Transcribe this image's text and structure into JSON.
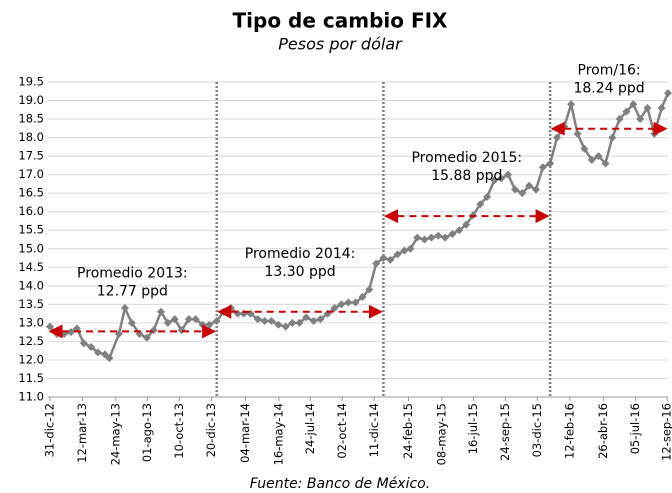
{
  "chart_data": {
    "type": "line",
    "title": "Tipo de cambio FIX",
    "subtitle": "Pesos por dólar",
    "source": "Fuente: Banco de México.",
    "color": "#808080",
    "grid": true,
    "x": [
      "2012-12-31",
      "2013-01-15",
      "2013-01-31",
      "2013-02-15",
      "2013-02-28",
      "2013-03-15",
      "2013-03-31",
      "2013-04-15",
      "2013-04-30",
      "2013-05-10",
      "2013-05-31",
      "2013-06-13",
      "2013-06-28",
      "2013-07-15",
      "2013-07-31",
      "2013-08-15",
      "2013-08-31",
      "2013-09-15",
      "2013-09-30",
      "2013-10-15",
      "2013-10-31",
      "2013-11-15",
      "2013-11-30",
      "2013-12-15",
      "2013-12-31",
      "2014-01-15",
      "2014-01-31",
      "2014-02-15",
      "2014-02-28",
      "2014-03-15",
      "2014-03-31",
      "2014-04-15",
      "2014-04-30",
      "2014-05-15",
      "2014-05-31",
      "2014-06-15",
      "2014-06-30",
      "2014-07-15",
      "2014-07-31",
      "2014-08-15",
      "2014-08-31",
      "2014-09-15",
      "2014-09-30",
      "2014-10-15",
      "2014-10-31",
      "2014-11-15",
      "2014-11-30",
      "2014-12-15",
      "2014-12-31",
      "2015-01-15",
      "2015-01-31",
      "2015-02-15",
      "2015-02-28",
      "2015-03-15",
      "2015-03-31",
      "2015-04-15",
      "2015-04-30",
      "2015-05-15",
      "2015-05-31",
      "2015-06-15",
      "2015-06-30",
      "2015-07-15",
      "2015-07-31",
      "2015-08-15",
      "2015-08-31",
      "2015-09-15",
      "2015-09-30",
      "2015-10-15",
      "2015-10-31",
      "2015-11-15",
      "2015-11-30",
      "2015-12-15",
      "2015-12-31",
      "2016-01-15",
      "2016-01-31",
      "2016-02-15",
      "2016-02-29",
      "2016-03-15",
      "2016-03-31",
      "2016-04-15",
      "2016-04-30",
      "2016-05-15",
      "2016-05-31",
      "2016-06-15",
      "2016-06-30",
      "2016-07-15",
      "2016-07-31",
      "2016-08-15",
      "2016-08-31",
      "2016-09-14"
    ],
    "values": [
      12.9,
      12.7,
      12.7,
      12.75,
      12.85,
      12.45,
      12.35,
      12.2,
      12.15,
      12.05,
      12.7,
      13.4,
      13.0,
      12.7,
      12.6,
      12.8,
      13.3,
      13.0,
      13.1,
      12.8,
      13.1,
      13.1,
      12.95,
      12.95,
      13.05,
      13.3,
      13.4,
      13.25,
      13.25,
      13.25,
      13.1,
      13.05,
      13.05,
      12.95,
      12.9,
      13.0,
      13.0,
      13.15,
      13.05,
      13.1,
      13.25,
      13.4,
      13.5,
      13.55,
      13.55,
      13.7,
      13.9,
      14.6,
      14.75,
      14.7,
      14.85,
      14.95,
      15.0,
      15.3,
      15.25,
      15.3,
      15.35,
      15.3,
      15.4,
      15.5,
      15.65,
      15.9,
      16.2,
      16.4,
      16.85,
      16.9,
      17.0,
      16.6,
      16.5,
      16.7,
      16.6,
      17.2,
      17.3,
      18.0,
      18.3,
      18.9,
      18.1,
      17.7,
      17.4,
      17.5,
      17.3,
      18.0,
      18.5,
      18.7,
      18.9,
      18.5,
      18.8,
      18.1,
      18.8,
      19.2
    ],
    "xlim": [
      "2012-12-31",
      "2016-09-14"
    ],
    "xticks": [
      {
        "value": "2012-12-31",
        "label": "31-dic-12"
      },
      {
        "value": "2013-03-12",
        "label": "12-mar-13"
      },
      {
        "value": "2013-05-24",
        "label": "24-may-13"
      },
      {
        "value": "2013-08-01",
        "label": "01-ago-13"
      },
      {
        "value": "2013-10-10",
        "label": "10-oct-13"
      },
      {
        "value": "2013-12-20",
        "label": "20-dic-13"
      },
      {
        "value": "2014-03-04",
        "label": "04-mar-14"
      },
      {
        "value": "2014-05-16",
        "label": "16-may-14"
      },
      {
        "value": "2014-07-24",
        "label": "24-jul-14"
      },
      {
        "value": "2014-10-02",
        "label": "02-oct-14"
      },
      {
        "value": "2014-12-11",
        "label": "11-dic-14"
      },
      {
        "value": "2015-02-24",
        "label": "24-feb-15"
      },
      {
        "value": "2015-05-08",
        "label": "08-may-15"
      },
      {
        "value": "2015-07-16",
        "label": "16-jul-15"
      },
      {
        "value": "2015-09-24",
        "label": "24-sep-15"
      },
      {
        "value": "2015-12-03",
        "label": "03-dic-15"
      },
      {
        "value": "2016-02-12",
        "label": "12-feb-16"
      },
      {
        "value": "2016-04-26",
        "label": "26-abr-16"
      },
      {
        "value": "2016-07-05",
        "label": "05-jul-16"
      },
      {
        "value": "2016-09-12",
        "label": "12-sep-16"
      }
    ],
    "ylim": [
      11,
      19.5
    ],
    "yticks": [
      {
        "value": 11,
        "label": "11.0"
      },
      11.5,
      {
        "value": 12,
        "label": "12.0"
      },
      12.5,
      {
        "value": 13,
        "label": "13.0"
      },
      13.5,
      {
        "value": 14,
        "label": "14.0"
      },
      14.5,
      {
        "value": 15,
        "label": "15.0"
      },
      15.5,
      {
        "value": 16,
        "label": "16.0"
      },
      16.5,
      {
        "value": 17,
        "label": "17.0"
      },
      17.5,
      {
        "value": 18,
        "label": "18.0"
      },
      18.5,
      {
        "value": 19,
        "label": "19.0"
      },
      19.5
    ],
    "dividers": [
      "2013-12-31",
      "2014-12-31",
      "2015-12-31"
    ],
    "annotation_color": "#cc0000",
    "annotations": [
      {
        "text": "Promedio 2013:",
        "value": 12.77,
        "value_label": "12.77 ppd"
      },
      {
        "text": "Promedio 2014:",
        "value": 13.3,
        "value_label": "13.30 ppd"
      },
      {
        "text": "Promedio 2015:",
        "value": 15.88,
        "value_label": "15.88 ppd"
      },
      {
        "text": "Prom/16:",
        "value": 18.24,
        "value_label": "18.24 ppd"
      }
    ]
  }
}
